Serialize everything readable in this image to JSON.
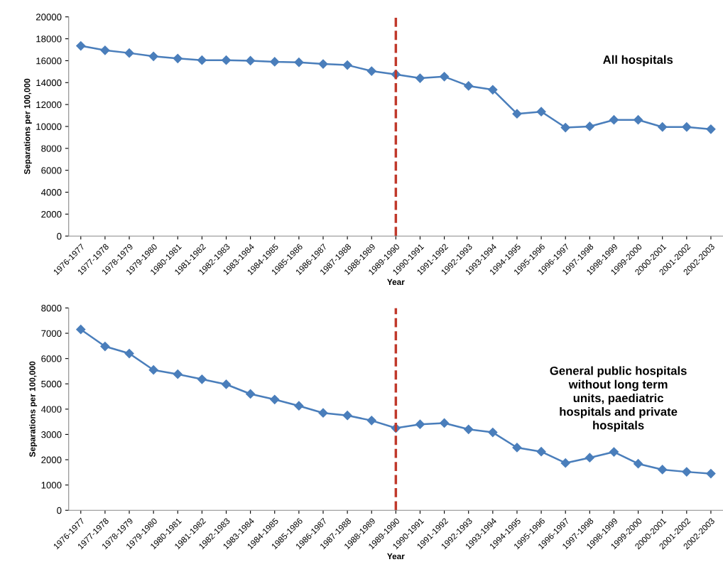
{
  "chart_data": [
    {
      "type": "line",
      "xlabel": "Year",
      "ylabel": "Separations per 100,000",
      "categories": [
        "1976-1977",
        "1977-1978",
        "1978-1979",
        "1979-1980",
        "1980-1981",
        "1981-1982",
        "1982-1983",
        "1983-1984",
        "1984-1985",
        "1985-1986",
        "1986-1987",
        "1987-1988",
        "1988-1989",
        "1989-1990",
        "1990-1991",
        "1991-1992",
        "1992-1993",
        "1993-1994",
        "1994-1995",
        "1995-1996",
        "1996-1997",
        "1997-1998",
        "1998-1999",
        "1999-2000",
        "2000-2001",
        "2001-2002",
        "2002-2003"
      ],
      "series": [
        {
          "color": "#4a7ebb",
          "values": [
            17350,
            16950,
            16700,
            16400,
            16200,
            16050,
            16050,
            16000,
            15900,
            15850,
            15700,
            15600,
            15050,
            14750,
            14400,
            14550,
            13700,
            13350,
            11150,
            11350,
            9900,
            10000,
            10600,
            10600,
            9950,
            9950,
            9750
          ]
        }
      ],
      "ylim": [
        0,
        20000
      ],
      "yticks": [
        0,
        2000,
        4000,
        6000,
        8000,
        10000,
        12000,
        14000,
        16000,
        18000,
        20000
      ],
      "marker": "diamond",
      "grid": false,
      "legend": false,
      "ref_lines": [
        {
          "axis": "x",
          "value": "1989-1990",
          "color": "#c0392b",
          "line_style": "dashed"
        }
      ],
      "annotations": [
        "All hospitals"
      ]
    },
    {
      "type": "line",
      "xlabel": "Year",
      "ylabel": "Separations per 100,000",
      "categories": [
        "1976-1977",
        "1977-1978",
        "1978-1979",
        "1979-1980",
        "1980-1981",
        "1981-1982",
        "1982-1983",
        "1983-1984",
        "1984-1985",
        "1985-1986",
        "1986-1987",
        "1987-1988",
        "1988-1989",
        "1989-1990",
        "1990-1991",
        "1991-1992",
        "1992-1993",
        "1993-1994",
        "1994-1995",
        "1995-1996",
        "1996-1997",
        "1997-1998",
        "1998-1999",
        "1999-2000",
        "2000-2001",
        "2001-2002",
        "2002-2003"
      ],
      "series": [
        {
          "color": "#4a7ebb",
          "values": [
            7150,
            6480,
            6200,
            5550,
            5380,
            5180,
            4980,
            4600,
            4380,
            4130,
            3850,
            3750,
            3550,
            3250,
            3400,
            3450,
            3200,
            3080,
            2480,
            2320,
            1870,
            2080,
            2310,
            1840,
            1610,
            1520,
            1450
          ]
        }
      ],
      "ylim": [
        0,
        8000
      ],
      "yticks": [
        0,
        1000,
        2000,
        3000,
        4000,
        5000,
        6000,
        7000,
        8000
      ],
      "marker": "diamond",
      "grid": false,
      "legend": false,
      "ref_lines": [
        {
          "axis": "x",
          "value": "1989-1990",
          "color": "#c0392b",
          "line_style": "dashed"
        }
      ],
      "annotations": [
        "General public hospitals\nwithout long term\nunits, paediatric\nhospitals and private\nhospitals"
      ]
    }
  ]
}
